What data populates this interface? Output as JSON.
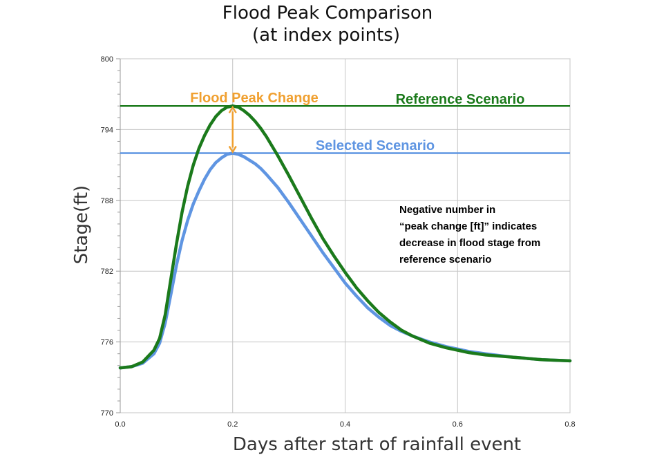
{
  "chart_data": {
    "type": "line",
    "title": [
      "Flood Peak Comparison",
      "(at index points)"
    ],
    "xlabel": "Days after start of rainfall event",
    "ylabel": "Stage(ft)",
    "xlim": [
      0.0,
      0.8
    ],
    "ylim": [
      770,
      800
    ],
    "x_ticks": [
      0.0,
      0.2,
      0.4,
      0.6,
      0.8
    ],
    "x_tick_labels": [
      "0.0",
      "0.2",
      "0.4",
      "0.6",
      "0.8"
    ],
    "y_ticks": [
      770,
      776,
      782,
      788,
      794,
      800
    ],
    "y_tick_labels": [
      "770",
      "776",
      "782",
      "788",
      "794",
      "800"
    ],
    "grid": true,
    "series": [
      {
        "name": "Reference Scenario",
        "color": "#1b7a1b",
        "x": [
          0.0,
          0.02,
          0.04,
          0.06,
          0.07,
          0.08,
          0.09,
          0.1,
          0.11,
          0.12,
          0.13,
          0.14,
          0.15,
          0.16,
          0.17,
          0.18,
          0.19,
          0.2,
          0.21,
          0.22,
          0.23,
          0.24,
          0.25,
          0.26,
          0.28,
          0.3,
          0.32,
          0.34,
          0.36,
          0.38,
          0.4,
          0.42,
          0.44,
          0.46,
          0.48,
          0.5,
          0.52,
          0.55,
          0.58,
          0.6,
          0.62,
          0.65,
          0.7,
          0.75,
          0.8
        ],
        "y": [
          773.8,
          773.9,
          774.3,
          775.3,
          776.3,
          778.3,
          781.3,
          784.3,
          787.0,
          789.2,
          791.0,
          792.4,
          793.5,
          794.4,
          795.1,
          795.6,
          795.9,
          796.0,
          795.9,
          795.6,
          795.2,
          794.7,
          794.1,
          793.4,
          791.8,
          790.1,
          788.3,
          786.5,
          784.8,
          783.3,
          781.9,
          780.6,
          779.5,
          778.5,
          777.7,
          777.0,
          776.5,
          775.9,
          775.5,
          775.3,
          775.1,
          774.9,
          774.7,
          774.5,
          774.4
        ]
      },
      {
        "name": "Selected Scenario",
        "color": "#5f95e2",
        "x": [
          0.0,
          0.02,
          0.04,
          0.06,
          0.07,
          0.08,
          0.09,
          0.1,
          0.11,
          0.12,
          0.13,
          0.14,
          0.15,
          0.16,
          0.17,
          0.18,
          0.19,
          0.2,
          0.21,
          0.22,
          0.23,
          0.24,
          0.25,
          0.26,
          0.28,
          0.3,
          0.32,
          0.34,
          0.36,
          0.38,
          0.4,
          0.42,
          0.44,
          0.46,
          0.48,
          0.5,
          0.52,
          0.55,
          0.58,
          0.6,
          0.62,
          0.65,
          0.7,
          0.75,
          0.8
        ],
        "y": [
          773.8,
          773.9,
          774.2,
          775.0,
          775.9,
          777.6,
          780.0,
          782.5,
          784.6,
          786.3,
          787.7,
          788.8,
          789.8,
          790.6,
          791.2,
          791.6,
          791.9,
          792.0,
          791.9,
          791.7,
          791.4,
          791.1,
          790.7,
          790.2,
          789.1,
          787.8,
          786.4,
          785.0,
          783.6,
          782.3,
          781.0,
          779.9,
          778.9,
          778.1,
          777.4,
          776.9,
          776.5,
          776.0,
          775.6,
          775.4,
          775.2,
          775.0,
          774.7,
          774.5,
          774.4
        ]
      }
    ],
    "reference_lines": [
      {
        "name": "Reference Scenario",
        "y": 796.0,
        "color": "#1b7a1b"
      },
      {
        "name": "Selected Scenario",
        "y": 792.0,
        "color": "#5f95e2"
      }
    ],
    "peak_change": {
      "label": "Flood Peak Change",
      "x": 0.2,
      "from": 796.0,
      "to": 792.0,
      "color": "#f0a030"
    },
    "annotation": [
      " Negative number in",
      "“peak change [ft]” indicates",
      "decrease in flood stage from",
      "reference scenario"
    ]
  }
}
